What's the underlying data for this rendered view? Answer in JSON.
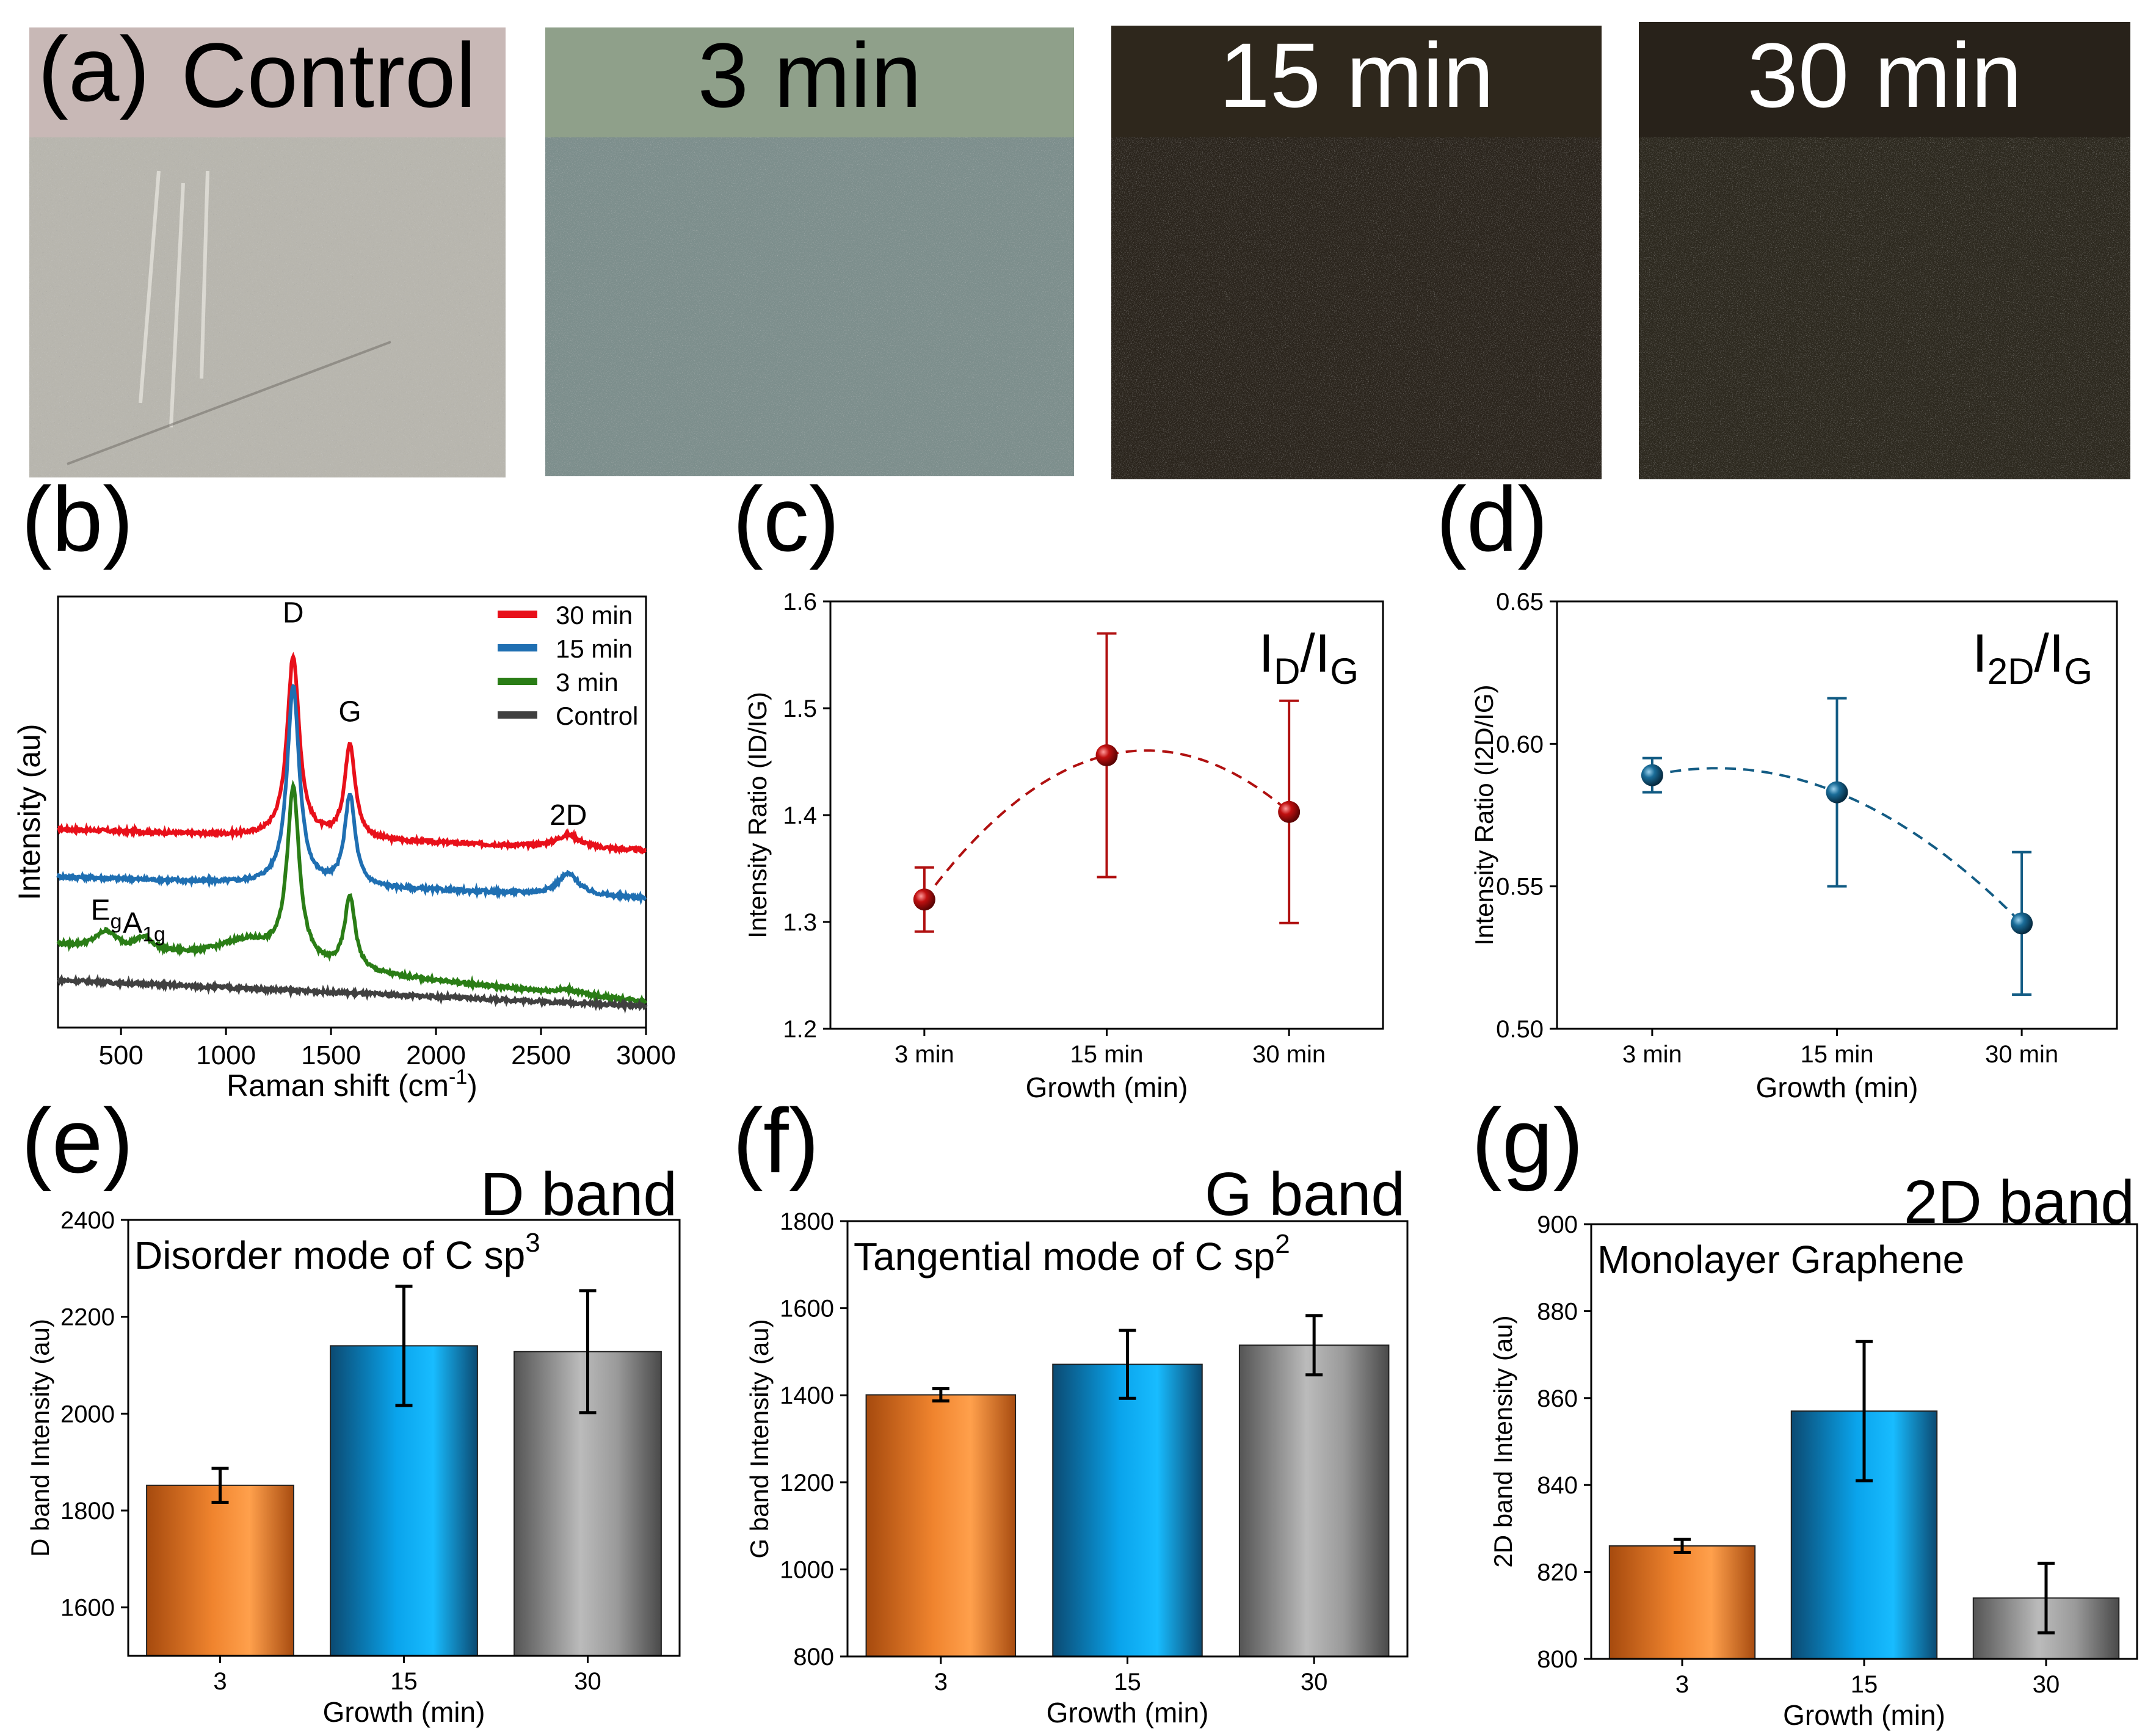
{
  "panel_a": {
    "letter": "(a)",
    "photos": [
      {
        "label": "Control",
        "header_color": "#c8b8b6",
        "base_color": "#b8b6ae",
        "speckle_color": "#e8e6e0"
      },
      {
        "label": "3 min",
        "header_color": "#8fa08a",
        "base_color": "#7c8e8c",
        "speckle_color": "#b8cccc"
      },
      {
        "label": "15 min",
        "header_color": "#2e271c",
        "base_color": "#2a241c",
        "speckle_color": "#6a6454"
      },
      {
        "label": "30 min",
        "header_color": "#28221a",
        "base_color": "#2c281e",
        "speckle_color": "#5a5646"
      }
    ]
  },
  "chart_data": [
    {
      "panel": "(b)",
      "type": "line",
      "xlabel": "Raman shift (cm",
      "xlabel_sup": "-1",
      "xlabel_tail": ")",
      "ylabel": "Intensity (au)",
      "xlim": [
        200,
        3000
      ],
      "xticks": [
        500,
        1000,
        1500,
        2000,
        2500,
        3000
      ],
      "ylim": [
        0,
        1
      ],
      "legend_position": "top-right",
      "peak_labels": [
        {
          "text": "D",
          "x": 1320,
          "y": 0.94
        },
        {
          "text": "G",
          "x": 1590,
          "y": 0.71
        },
        {
          "text": "2D",
          "x": 2630,
          "y": 0.47
        },
        {
          "text": "E",
          "sub": "g",
          "x": 430,
          "y": 0.25
        },
        {
          "text": "A",
          "sub": "1g",
          "x": 610,
          "y": 0.22
        }
      ],
      "series": [
        {
          "name": "30 min",
          "color": "#e8101a",
          "baseline": [
            0.46,
            0.41
          ],
          "peaks": [
            {
              "x": 1320,
              "h": 0.42,
              "w": 35
            },
            {
              "x": 1590,
              "h": 0.22,
              "w": 30
            },
            {
              "x": 2630,
              "h": 0.03,
              "w": 70
            }
          ]
        },
        {
          "name": "15 min",
          "color": "#1f6fb2",
          "baseline": [
            0.35,
            0.3
          ],
          "peaks": [
            {
              "x": 1320,
              "h": 0.46,
              "w": 35
            },
            {
              "x": 1590,
              "h": 0.21,
              "w": 30
            },
            {
              "x": 2630,
              "h": 0.05,
              "w": 60
            }
          ]
        },
        {
          "name": "3 min",
          "color": "#2a7d16",
          "baseline": [
            0.19,
            0.06
          ],
          "peaks": [
            {
              "x": 1320,
              "h": 0.4,
              "w": 35
            },
            {
              "x": 1590,
              "h": 0.17,
              "w": 30
            },
            {
              "x": 430,
              "h": 0.04,
              "w": 60
            },
            {
              "x": 610,
              "h": 0.03,
              "w": 50
            },
            {
              "x": 1100,
              "h": 0.05,
              "w": 180
            },
            {
              "x": 2630,
              "h": 0.01,
              "w": 70
            }
          ]
        },
        {
          "name": "Control",
          "color": "#404040",
          "baseline": [
            0.11,
            0.05
          ],
          "peaks": []
        }
      ]
    },
    {
      "panel": "(c)",
      "type": "scatter",
      "annotation": "I",
      "annotation_sub1": "D",
      "annotation_mid": "/I",
      "annotation_sub2": "G",
      "xlabel": "Growth (min)",
      "ylabel": "Intensity Ratio (ID/IG)",
      "categories": [
        "3 min",
        "15 min",
        "30 min"
      ],
      "values": [
        1.321,
        1.456,
        1.403
      ],
      "errors": [
        0.03,
        0.114,
        0.104
      ],
      "ylim": [
        1.2,
        1.6
      ],
      "yticks": [
        "1.2",
        "1.3",
        "1.4",
        "1.5",
        "1.6"
      ],
      "color": "#b01010",
      "fit_line": "dashed"
    },
    {
      "panel": "(d)",
      "type": "scatter",
      "annotation": "I",
      "annotation_sub1": "2D",
      "annotation_mid": "/I",
      "annotation_sub2": "G",
      "xlabel": "Growth (min)",
      "ylabel": "Intensity Ratio (I2D/IG)",
      "categories": [
        "3 min",
        "15 min",
        "30 min"
      ],
      "values": [
        0.589,
        0.583,
        0.537
      ],
      "errors": [
        0.006,
        0.033,
        0.025
      ],
      "ylim": [
        0.5,
        0.65
      ],
      "yticks": [
        "0.50",
        "0.55",
        "0.60",
        "0.65"
      ],
      "color": "#135c84",
      "fit_line": "dashed"
    },
    {
      "panel": "(e)",
      "type": "bar",
      "title": "D band",
      "annotation": "Disorder mode of C sp",
      "annotation_sup": "3",
      "xlabel": "Growth (min)",
      "ylabel": "D band Intensity (au)",
      "categories": [
        "3",
        "15",
        "30"
      ],
      "values": [
        1852,
        2140,
        2128
      ],
      "errors": [
        35,
        123,
        126
      ],
      "ylim": [
        1500,
        2400
      ],
      "yticks": [
        "1600",
        "1800",
        "2000",
        "2200",
        "2400"
      ]
    },
    {
      "panel": "(f)",
      "type": "bar",
      "title": "G band",
      "annotation": "Tangential mode of C sp",
      "annotation_sup": "2",
      "xlabel": "Growth (min)",
      "ylabel": "G band Intensity (au)",
      "categories": [
        "3",
        "15",
        "30"
      ],
      "values": [
        1401,
        1471,
        1515
      ],
      "errors": [
        14,
        78,
        68
      ],
      "ylim": [
        800,
        1800
      ],
      "yticks": [
        "800",
        "1000",
        "1200",
        "1400",
        "1600",
        "1800"
      ]
    },
    {
      "panel": "(g)",
      "type": "bar",
      "title": "2D band",
      "annotation": "Monolayer Graphene",
      "annotation_sup": "",
      "xlabel": "Growth (min)",
      "ylabel": "2D band Intensity (au)",
      "categories": [
        "3",
        "15",
        "30"
      ],
      "values": [
        826,
        857,
        814
      ],
      "errors": [
        1.5,
        16,
        8
      ],
      "ylim": [
        800,
        900
      ],
      "yticks": [
        "800",
        "820",
        "840",
        "860",
        "880",
        "900"
      ]
    }
  ],
  "bar_colors": {
    "orange": [
      "#a64a0e",
      "#f0842e",
      "#ffa04c",
      "#a84c10"
    ],
    "blue": [
      "#0b4a72",
      "#0aa4ec",
      "#18bcff",
      "#0b4a72"
    ],
    "gray": [
      "#555555",
      "#bbbbbb",
      "#9a9a9a",
      "#4a4a4a"
    ]
  }
}
